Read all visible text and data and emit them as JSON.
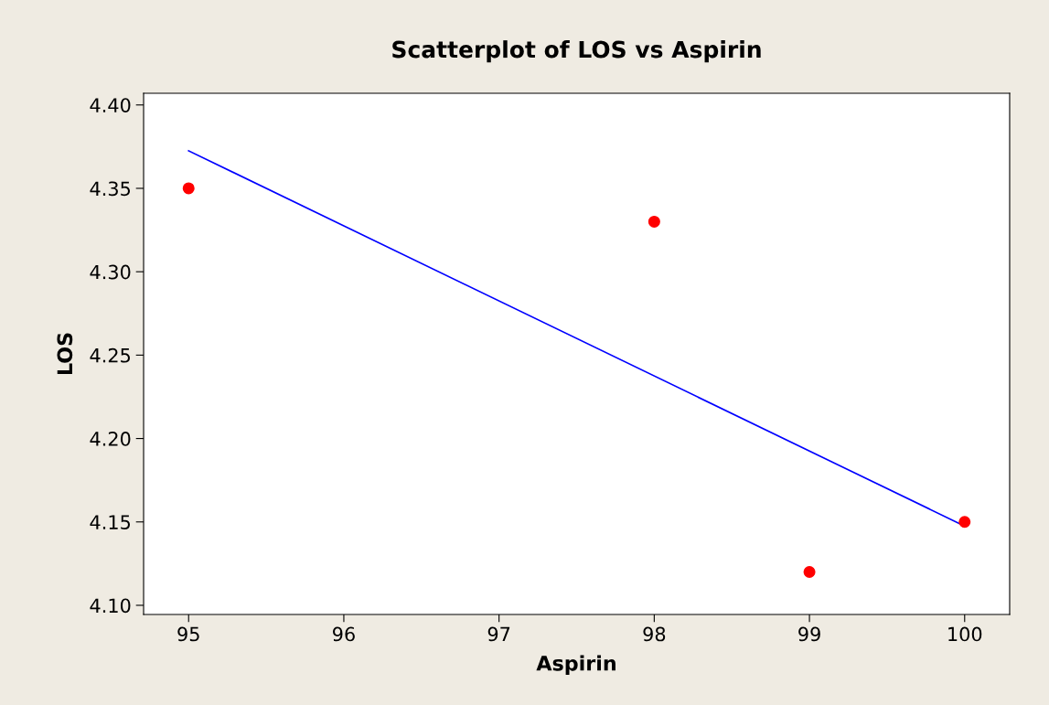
{
  "chart_data": {
    "type": "scatter",
    "title": "Scatterplot of LOS vs Aspirin",
    "xlabel": "Aspirin",
    "ylabel": "LOS",
    "series": [
      {
        "color": "#ff0000",
        "x": [
          95,
          98,
          99,
          100
        ],
        "values": [
          4.35,
          4.33,
          4.12,
          4.15
        ],
        "marker": "circle"
      },
      {
        "type": "line",
        "color": "#0000ff",
        "x": [
          95,
          100
        ],
        "values": [
          4.3725,
          4.1475
        ],
        "marker": "none",
        "line_style": "solid"
      }
    ],
    "xlim": [
      94.71,
      100.29
    ],
    "ylim": [
      4.0945,
      4.407
    ],
    "xticks": [
      95,
      96,
      97,
      98,
      99,
      100
    ],
    "yticks": [
      {
        "value": 4.1,
        "label": "4.10"
      },
      {
        "value": 4.15,
        "label": "4.15"
      },
      {
        "value": 4.2,
        "label": "4.20"
      },
      {
        "value": 4.25,
        "label": "4.25"
      },
      {
        "value": 4.3,
        "label": "4.30"
      },
      {
        "value": 4.35,
        "label": "4.35"
      },
      {
        "value": 4.4,
        "label": "4.40"
      }
    ],
    "grid": false,
    "legend": false
  }
}
